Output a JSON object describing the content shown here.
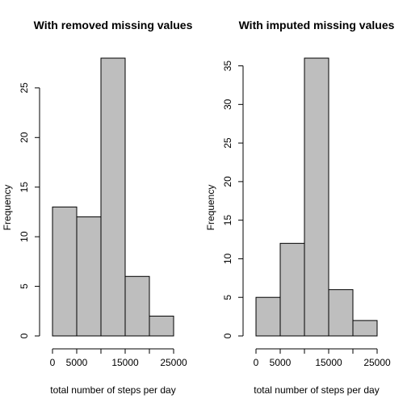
{
  "chart_data": [
    {
      "type": "bar",
      "title": "With removed missing values",
      "xlabel": "total number of steps per day",
      "ylabel": "Frequency",
      "bins": [
        [
          0,
          5000
        ],
        [
          5000,
          10000
        ],
        [
          10000,
          15000
        ],
        [
          15000,
          20000
        ],
        [
          20000,
          25000
        ]
      ],
      "values": [
        13,
        12,
        28,
        6,
        2
      ],
      "xlim": [
        0,
        25000
      ],
      "ylim": [
        0,
        28
      ],
      "xticks": [
        0,
        5000,
        10000,
        15000,
        20000,
        25000
      ],
      "xtick_labels": [
        "0",
        "5000",
        "",
        "15000",
        "",
        "25000"
      ],
      "xtick_labels_staggered": [
        "",
        "",
        "",
        "",
        "",
        ""
      ],
      "yticks": [
        0,
        5,
        10,
        15,
        20,
        25
      ],
      "ytick_labels": [
        "0",
        "5",
        "10",
        "15",
        "20",
        "25"
      ],
      "grid": false,
      "color": "#bebebe"
    },
    {
      "type": "bar",
      "title": "With imputed missing values",
      "xlabel": "total number of steps per day",
      "ylabel": "Frequency",
      "bins": [
        [
          0,
          5000
        ],
        [
          5000,
          10000
        ],
        [
          10000,
          15000
        ],
        [
          15000,
          20000
        ],
        [
          20000,
          25000
        ]
      ],
      "values": [
        5,
        12,
        36,
        6,
        2
      ],
      "xlim": [
        0,
        25000
      ],
      "ylim": [
        0,
        36
      ],
      "xticks": [
        0,
        5000,
        10000,
        15000,
        20000,
        25000
      ],
      "xtick_labels": [
        "0",
        "5000",
        "",
        "15000",
        "",
        "25000"
      ],
      "yticks": [
        0,
        5,
        10,
        15,
        20,
        25,
        30,
        35
      ],
      "ytick_labels": [
        "0",
        "5",
        "10",
        "15",
        "20",
        "25",
        "30",
        "35"
      ],
      "grid": false,
      "color": "#bebebe"
    }
  ]
}
